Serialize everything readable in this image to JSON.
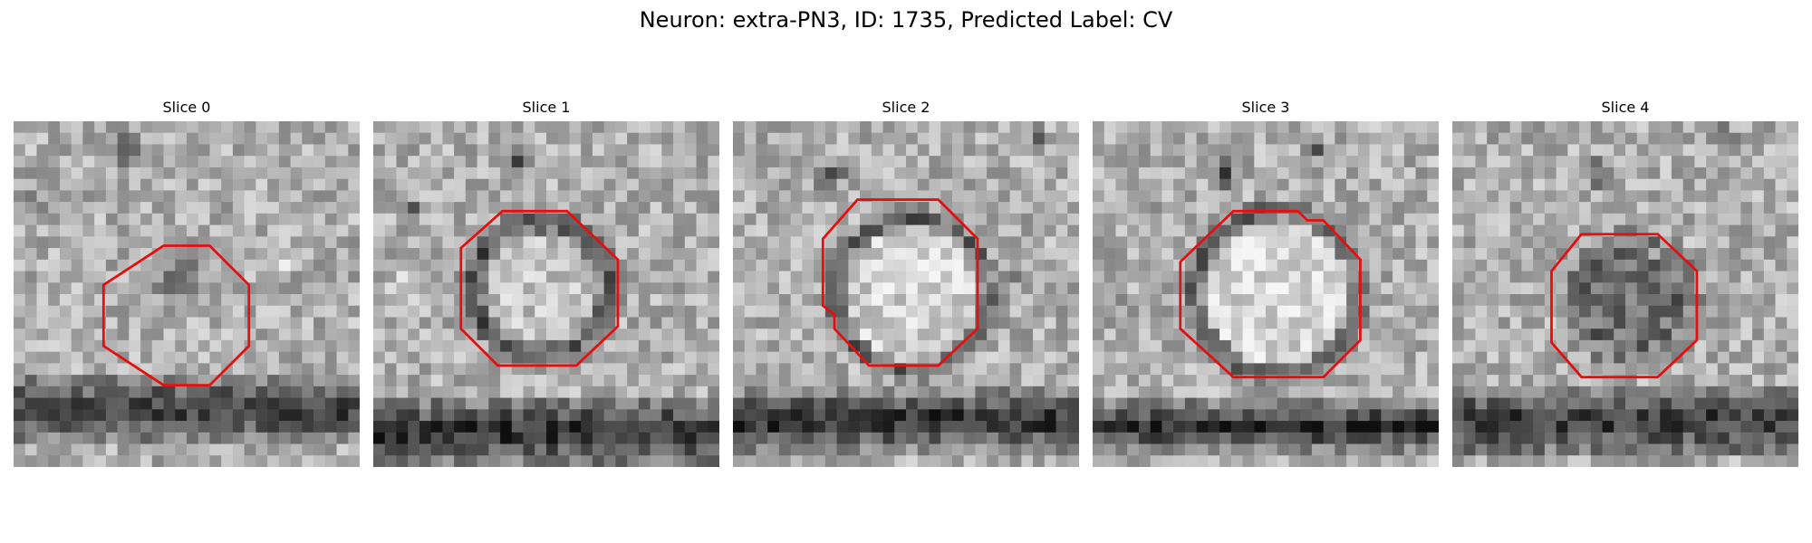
{
  "figure": {
    "title": "Neuron: extra-PN3, ID: 1735, Predicted Label: CV",
    "contour_color": "#e41010"
  },
  "panels": [
    {
      "title": "Slice 0",
      "seed": 11,
      "grid_size": 30,
      "band": {
        "row": 24.5,
        "half": 3.2,
        "strength": 95
      },
      "ring": {
        "cx": 14,
        "cy": 13.5,
        "r": 4.6,
        "width": 1.3,
        "strength": 0,
        "inner": 0
      },
      "blobs": [
        {
          "x": 14,
          "y": 13,
          "r": 2.6,
          "s": 110
        },
        {
          "x": 9,
          "y": 2,
          "r": 2.4,
          "s": 80
        },
        {
          "x": 2,
          "y": 7,
          "r": 1.8,
          "s": 70
        },
        {
          "x": 23,
          "y": 12,
          "r": 1.2,
          "s": -40
        }
      ],
      "contour": [
        [
          130,
          108
        ],
        [
          170,
          108
        ],
        [
          204,
          142
        ],
        [
          204,
          195
        ],
        [
          170,
          229
        ],
        [
          130,
          229
        ],
        [
          78,
          195
        ],
        [
          78,
          142
        ]
      ]
    },
    {
      "title": "Slice 1",
      "seed": 23,
      "grid_size": 30,
      "band": {
        "row": 26.5,
        "half": 3.3,
        "strength": 110
      },
      "ring": {
        "cx": 14,
        "cy": 14,
        "r": 5.8,
        "width": 1.4,
        "strength": 95,
        "inner": -20
      },
      "blobs": [
        {
          "x": 12,
          "y": 3,
          "r": 2.0,
          "s": 80
        },
        {
          "x": 3,
          "y": 7,
          "r": 1.5,
          "s": 60
        },
        {
          "x": 2,
          "y": 14,
          "r": 2.0,
          "s": -45
        }
      ],
      "contour": [
        [
          112,
          78
        ],
        [
          168,
          78
        ],
        [
          212,
          120
        ],
        [
          212,
          178
        ],
        [
          176,
          212
        ],
        [
          108,
          212
        ],
        [
          76,
          180
        ],
        [
          76,
          110
        ]
      ]
    },
    {
      "title": "Slice 2",
      "seed": 37,
      "grid_size": 30,
      "band": {
        "row": 25.5,
        "half": 2.8,
        "strength": 115
      },
      "ring": {
        "cx": 15,
        "cy": 14.5,
        "r": 6.6,
        "width": 1.3,
        "strength": 85,
        "inner": -35
      },
      "blobs": [
        {
          "x": 8,
          "y": 4,
          "r": 2.0,
          "s": 70
        },
        {
          "x": 26,
          "y": 1,
          "r": 1.5,
          "s": 60
        },
        {
          "x": 24,
          "y": 13,
          "r": 1.2,
          "s": 40
        }
      ],
      "contour": [
        [
          108,
          68
        ],
        [
          178,
          68
        ],
        [
          212,
          102
        ],
        [
          212,
          180
        ],
        [
          178,
          212
        ],
        [
          118,
          212
        ],
        [
          88,
          180
        ],
        [
          88,
          168
        ],
        [
          78,
          160
        ],
        [
          78,
          102
        ]
      ]
    },
    {
      "title": "Slice 3",
      "seed": 51,
      "grid_size": 30,
      "band": {
        "row": 26,
        "half": 2.5,
        "strength": 110
      },
      "ring": {
        "cx": 15.5,
        "cy": 14.5,
        "r": 7.2,
        "width": 1.4,
        "strength": 80,
        "inner": -40
      },
      "blobs": [
        {
          "x": 11,
          "y": 4,
          "r": 1.8,
          "s": 90
        },
        {
          "x": 19,
          "y": 2,
          "r": 1.6,
          "s": 75
        },
        {
          "x": 1,
          "y": 16,
          "r": 1.6,
          "s": 55
        },
        {
          "x": 27,
          "y": 16,
          "r": 1.3,
          "s": 50
        }
      ],
      "contour": [
        [
          122,
          78
        ],
        [
          178,
          78
        ],
        [
          186,
          86
        ],
        [
          200,
          86
        ],
        [
          232,
          120
        ],
        [
          232,
          190
        ],
        [
          200,
          222
        ],
        [
          122,
          222
        ],
        [
          76,
          180
        ],
        [
          76,
          122
        ]
      ]
    },
    {
      "title": "Slice 4",
      "seed": 67,
      "grid_size": 30,
      "band": {
        "row": 25.5,
        "half": 3.5,
        "strength": 100
      },
      "ring": {
        "cx": 15,
        "cy": 15,
        "r": 5.2,
        "width": 1.5,
        "strength": 55,
        "inner": 60
      },
      "blobs": [
        {
          "x": 12,
          "y": 4,
          "r": 1.8,
          "s": 80
        },
        {
          "x": 23,
          "y": 1,
          "r": 1.5,
          "s": 75
        },
        {
          "x": 8,
          "y": 10,
          "r": 1.5,
          "s": 45
        }
      ],
      "contour": [
        [
          112,
          98
        ],
        [
          178,
          98
        ],
        [
          212,
          130
        ],
        [
          212,
          190
        ],
        [
          178,
          222
        ],
        [
          112,
          222
        ],
        [
          86,
          192
        ],
        [
          86,
          130
        ]
      ]
    }
  ]
}
